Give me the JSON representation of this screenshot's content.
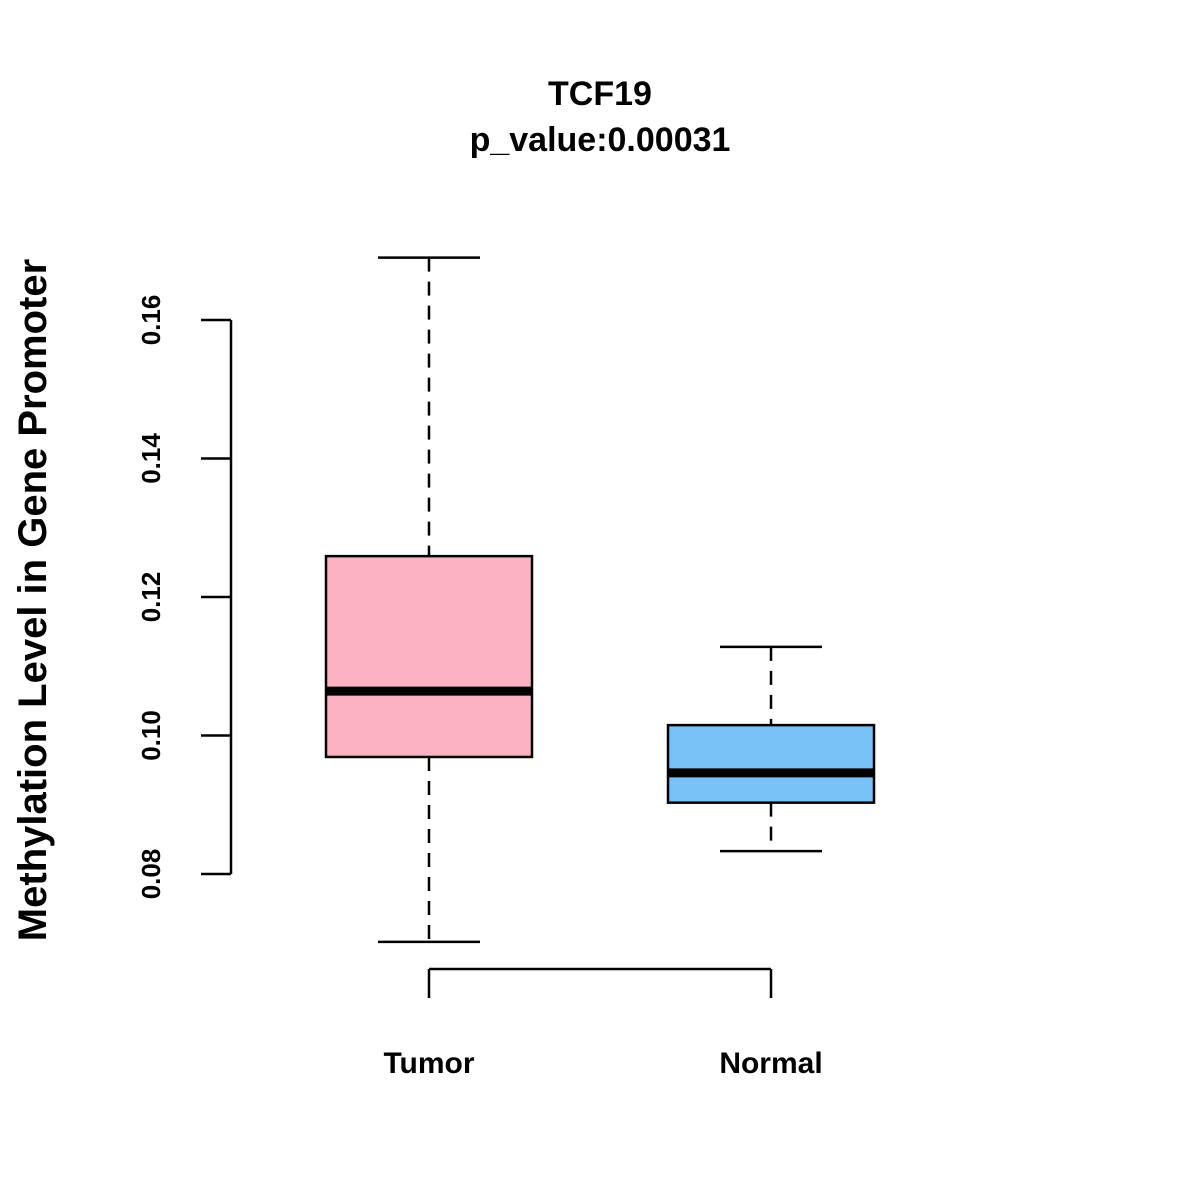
{
  "chart_data": {
    "type": "box",
    "title": "TCF19",
    "subtitle": "p_value:0.00031",
    "xlabel": "",
    "ylabel": "Methylation Level in Gene Promoter",
    "categories": [
      "Tumor",
      "Normal"
    ],
    "y_ticks": [
      0.08,
      0.1,
      0.12,
      0.14,
      0.16
    ],
    "y_tick_labels": [
      "0.08",
      "0.10",
      "0.12",
      "0.14",
      "0.16"
    ],
    "grid": false,
    "series": [
      {
        "name": "Tumor",
        "color": "#FDB2C4",
        "whisker_low": 0.0702,
        "q1": 0.0969,
        "median": 0.1064,
        "q3": 0.1259,
        "whisker_high": 0.169
      },
      {
        "name": "Normal",
        "color": "#77C1F7",
        "whisker_low": 0.0833,
        "q1": 0.0903,
        "median": 0.0946,
        "q3": 0.1015,
        "whisker_high": 0.1128
      }
    ]
  }
}
